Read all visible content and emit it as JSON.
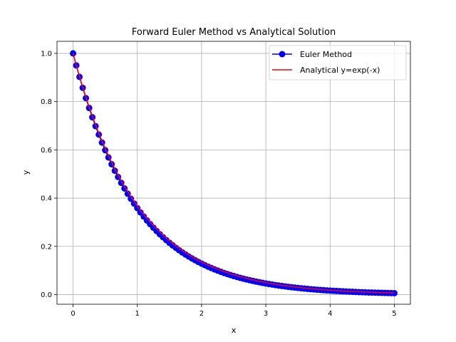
{
  "chart_data": {
    "type": "line",
    "title": "Forward Euler Method vs Analytical Solution",
    "xlabel": "x",
    "ylabel": "y",
    "xlim": [
      -0.25,
      5.25
    ],
    "ylim": [
      -0.04,
      1.05
    ],
    "xticks": [
      0,
      1,
      2,
      3,
      4,
      5
    ],
    "yticks": [
      0.0,
      0.2,
      0.4,
      0.6,
      0.8,
      1.0
    ],
    "xtick_labels": [
      "0",
      "1",
      "2",
      "3",
      "4",
      "5"
    ],
    "ytick_labels": [
      "0.0",
      "0.2",
      "0.4",
      "0.6",
      "0.8",
      "1.0"
    ],
    "grid": true,
    "legend_position": "top-right",
    "series": [
      {
        "name": "Euler Method",
        "style": "line-with-markers",
        "color": "#0000ff",
        "x_start": 0,
        "x_end": 5,
        "x_step": 0.05,
        "values": "y_{n+1} = y_n * (1 - 0.05), y_0 = 1"
      },
      {
        "name": "Analytical y=exp(-x)",
        "style": "line",
        "color": "#ff0000",
        "x_start": 0,
        "x_end": 5,
        "function": "exp(-x)"
      }
    ]
  }
}
